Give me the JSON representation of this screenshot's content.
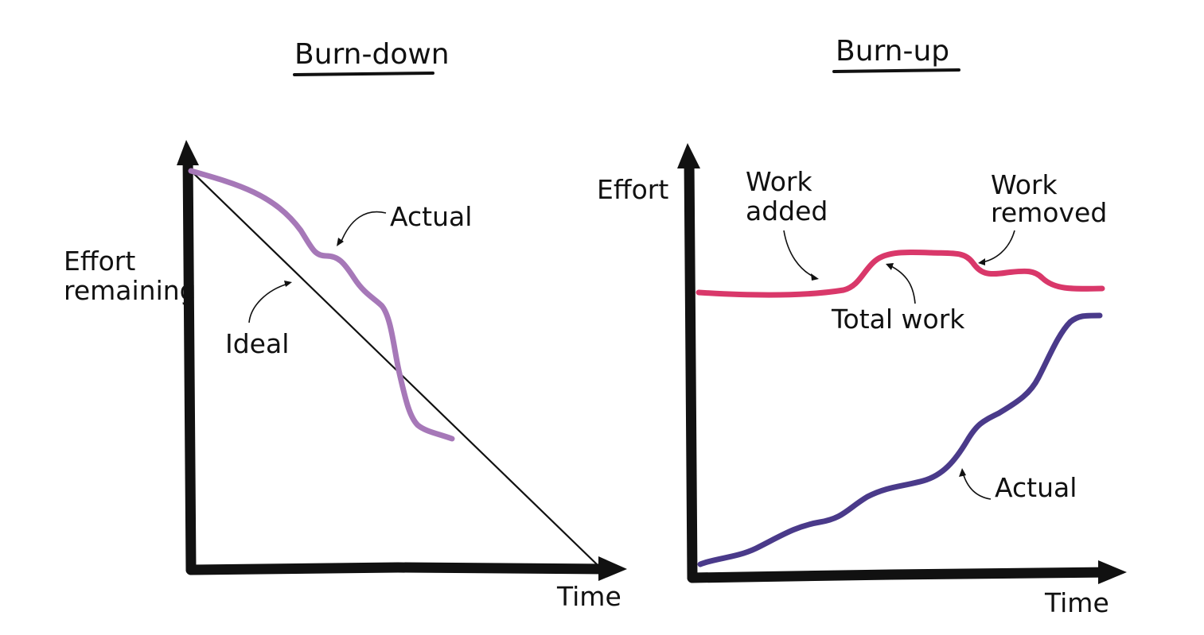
{
  "burndown": {
    "title": "Burn-down",
    "y_label_line1": "Effort",
    "y_label_line2": "remaining",
    "x_label": "Time",
    "ideal_label": "Ideal",
    "actual_label": "Actual",
    "actual_color": "#a678b8"
  },
  "burnup": {
    "title": "Burn-up",
    "y_label": "Effort",
    "x_label": "Time",
    "work_added_line1": "Work",
    "work_added_line2": "added",
    "work_removed_line1": "Work",
    "work_removed_line2": "removed",
    "total_work_label": "Total work",
    "actual_label": "Actual",
    "total_color": "#d9386a",
    "actual_color": "#4a3a8a"
  }
}
